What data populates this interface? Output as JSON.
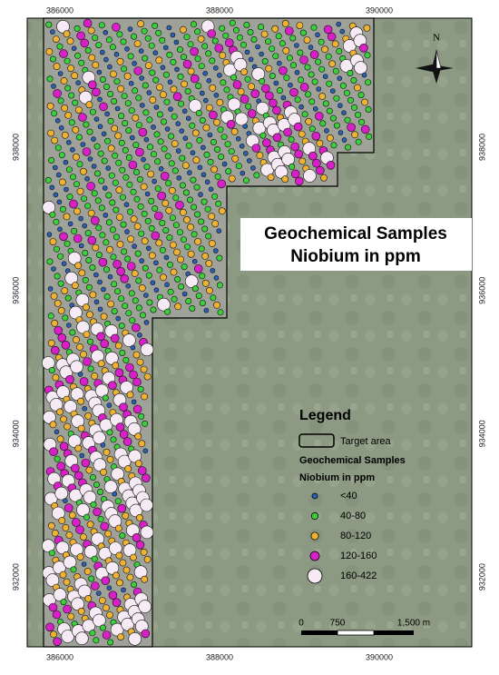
{
  "map": {
    "x_labels": [
      386000,
      388000,
      390000
    ],
    "y_labels": [
      938000,
      936000,
      934000,
      932000
    ],
    "north": "N",
    "title": [
      "Geochemical Samples",
      "Niobium in ppm"
    ],
    "legend": {
      "title": "Legend",
      "target_area": "Target area",
      "samples_title": "Geochemical Samples",
      "samples_subtitle": "Niobium in ppm",
      "classes": [
        {
          "label": "<40",
          "color": "#2d5fb4"
        },
        {
          "label": "40-80",
          "color": "#3ccf3c"
        },
        {
          "label": "80-120",
          "color": "#f0b232"
        },
        {
          "label": "120-160",
          "color": "#d81fc8"
        },
        {
          "label": "160-422",
          "color": "#f6eaf4"
        }
      ]
    },
    "scale_bar": {
      "labels": [
        "0",
        "750",
        "1,500 m"
      ]
    }
  }
}
